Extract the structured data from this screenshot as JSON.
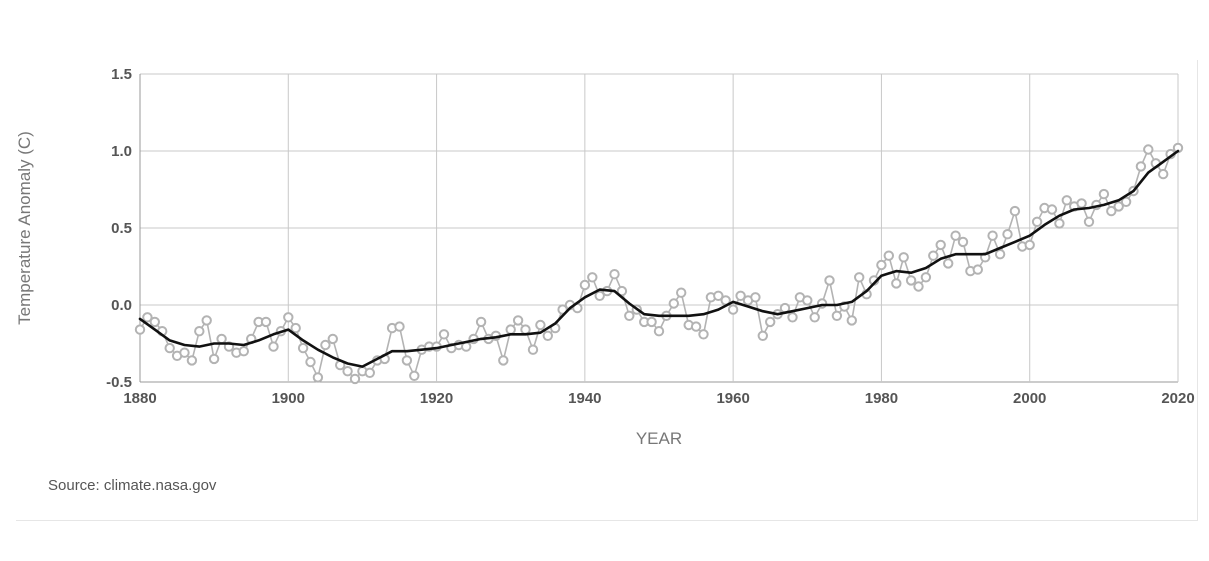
{
  "colors": {
    "grid": "#c8c8c8",
    "axis": "#999999",
    "raw_series": "#b3b3b3",
    "smooth_series": "#111111",
    "marker_fill": "#ffffff"
  },
  "source_note": "Source: climate.nasa.gov",
  "chart_data": {
    "type": "line",
    "xlabel": "YEAR",
    "ylabel": "Temperature Anomaly (C)",
    "xlim": [
      1880,
      2020
    ],
    "ylim": [
      -0.5,
      1.5
    ],
    "x_ticks": [
      1880,
      1900,
      1920,
      1940,
      1960,
      1980,
      2000,
      2020
    ],
    "y_ticks": [
      -0.5,
      0.0,
      0.5,
      1.0,
      1.5
    ],
    "x_tick_labels": [
      "1880",
      "1900",
      "1920",
      "1940",
      "1960",
      "1980",
      "2000",
      "2020"
    ],
    "y_tick_labels": [
      "-0.5",
      "0.0",
      "0.5",
      "1.0",
      "1.5"
    ],
    "grid": true,
    "legend": "none",
    "series": [
      {
        "style": "markers",
        "x": [
          1880,
          1881,
          1882,
          1883,
          1884,
          1885,
          1886,
          1887,
          1888,
          1889,
          1890,
          1891,
          1892,
          1893,
          1894,
          1895,
          1896,
          1897,
          1898,
          1899,
          1900,
          1901,
          1902,
          1903,
          1904,
          1905,
          1906,
          1907,
          1908,
          1909,
          1910,
          1911,
          1912,
          1913,
          1914,
          1915,
          1916,
          1917,
          1918,
          1919,
          1920,
          1921,
          1922,
          1923,
          1924,
          1925,
          1926,
          1927,
          1928,
          1929,
          1930,
          1931,
          1932,
          1933,
          1934,
          1935,
          1936,
          1937,
          1938,
          1939,
          1940,
          1941,
          1942,
          1943,
          1944,
          1945,
          1946,
          1947,
          1948,
          1949,
          1950,
          1951,
          1952,
          1953,
          1954,
          1955,
          1956,
          1957,
          1958,
          1959,
          1960,
          1961,
          1962,
          1963,
          1964,
          1965,
          1966,
          1967,
          1968,
          1969,
          1970,
          1971,
          1972,
          1973,
          1974,
          1975,
          1976,
          1977,
          1978,
          1979,
          1980,
          1981,
          1982,
          1983,
          1984,
          1985,
          1986,
          1987,
          1988,
          1989,
          1990,
          1991,
          1992,
          1993,
          1994,
          1995,
          1996,
          1997,
          1998,
          1999,
          2000,
          2001,
          2002,
          2003,
          2004,
          2005,
          2006,
          2007,
          2008,
          2009,
          2010,
          2011,
          2012,
          2013,
          2014,
          2015,
          2016,
          2017,
          2018,
          2019,
          2020
        ],
        "values": [
          -0.16,
          -0.08,
          -0.11,
          -0.17,
          -0.28,
          -0.33,
          -0.31,
          -0.36,
          -0.17,
          -0.1,
          -0.35,
          -0.22,
          -0.27,
          -0.31,
          -0.3,
          -0.22,
          -0.11,
          -0.11,
          -0.27,
          -0.17,
          -0.08,
          -0.15,
          -0.28,
          -0.37,
          -0.47,
          -0.26,
          -0.22,
          -0.39,
          -0.43,
          -0.48,
          -0.43,
          -0.44,
          -0.36,
          -0.35,
          -0.15,
          -0.14,
          -0.36,
          -0.46,
          -0.29,
          -0.27,
          -0.27,
          -0.19,
          -0.28,
          -0.26,
          -0.27,
          -0.22,
          -0.11,
          -0.22,
          -0.2,
          -0.36,
          -0.16,
          -0.1,
          -0.16,
          -0.29,
          -0.13,
          -0.2,
          -0.15,
          -0.03,
          0.0,
          -0.02,
          0.13,
          0.18,
          0.06,
          0.09,
          0.2,
          0.09,
          -0.07,
          -0.03,
          -0.11,
          -0.11,
          -0.17,
          -0.07,
          0.01,
          0.08,
          -0.13,
          -0.14,
          -0.19,
          0.05,
          0.06,
          0.03,
          -0.03,
          0.06,
          0.03,
          0.05,
          -0.2,
          -0.11,
          -0.06,
          -0.02,
          -0.08,
          0.05,
          0.03,
          -0.08,
          0.01,
          0.16,
          -0.07,
          -0.01,
          -0.1,
          0.18,
          0.07,
          0.16,
          0.26,
          0.32,
          0.14,
          0.31,
          0.16,
          0.12,
          0.18,
          0.32,
          0.39,
          0.27,
          0.45,
          0.41,
          0.22,
          0.23,
          0.31,
          0.45,
          0.33,
          0.46,
          0.61,
          0.38,
          0.39,
          0.54,
          0.63,
          0.62,
          0.53,
          0.68,
          0.64,
          0.66,
          0.54,
          0.65,
          0.72,
          0.61,
          0.64,
          0.67,
          0.74,
          0.9,
          1.01,
          0.92,
          0.85,
          0.98,
          1.02
        ]
      },
      {
        "style": "line",
        "x": [
          1880,
          1882,
          1884,
          1886,
          1888,
          1890,
          1892,
          1894,
          1896,
          1898,
          1900,
          1902,
          1904,
          1906,
          1908,
          1910,
          1912,
          1914,
          1916,
          1918,
          1920,
          1922,
          1924,
          1926,
          1928,
          1930,
          1932,
          1934,
          1936,
          1938,
          1940,
          1942,
          1944,
          1946,
          1948,
          1950,
          1952,
          1954,
          1956,
          1958,
          1960,
          1962,
          1964,
          1966,
          1968,
          1970,
          1972,
          1974,
          1976,
          1978,
          1980,
          1982,
          1984,
          1986,
          1988,
          1990,
          1992,
          1994,
          1996,
          1998,
          2000,
          2002,
          2004,
          2006,
          2008,
          2010,
          2012,
          2014,
          2016,
          2018,
          2020
        ],
        "values": [
          -0.09,
          -0.16,
          -0.23,
          -0.26,
          -0.27,
          -0.25,
          -0.25,
          -0.26,
          -0.23,
          -0.19,
          -0.16,
          -0.23,
          -0.29,
          -0.34,
          -0.38,
          -0.4,
          -0.35,
          -0.3,
          -0.3,
          -0.29,
          -0.28,
          -0.26,
          -0.24,
          -0.22,
          -0.21,
          -0.19,
          -0.19,
          -0.18,
          -0.12,
          -0.02,
          0.05,
          0.1,
          0.09,
          0.01,
          -0.06,
          -0.07,
          -0.07,
          -0.07,
          -0.06,
          -0.03,
          0.02,
          -0.01,
          -0.04,
          -0.06,
          -0.04,
          -0.02,
          0.0,
          0.0,
          0.02,
          0.09,
          0.19,
          0.22,
          0.21,
          0.24,
          0.3,
          0.33,
          0.33,
          0.33,
          0.37,
          0.41,
          0.45,
          0.52,
          0.58,
          0.62,
          0.63,
          0.65,
          0.68,
          0.74,
          0.86,
          0.93,
          1.0
        ]
      }
    ]
  }
}
